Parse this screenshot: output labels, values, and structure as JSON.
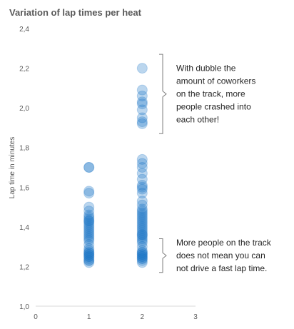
{
  "chart_data": {
    "type": "scatter",
    "title": "Variation of lap times per heat",
    "xlabel": "",
    "ylabel": "Lap time in minutes",
    "xlim": [
      0,
      3
    ],
    "ylim": [
      1.0,
      2.4
    ],
    "x_ticks": [
      0,
      1,
      2,
      3
    ],
    "x_tick_labels": [
      "0",
      "1",
      "2",
      "3"
    ],
    "y_ticks": [
      1.0,
      1.2,
      1.4,
      1.6,
      1.8,
      2.0,
      2.2,
      2.4
    ],
    "y_tick_labels": [
      "1,0",
      "1,2",
      "1,4",
      "1,6",
      "1,8",
      "2,0",
      "2,2",
      "2,4"
    ],
    "grid": false,
    "legend": "none",
    "marker_color": "#1f78c8",
    "marker_opacity": 0.3,
    "series": [
      {
        "x": 1,
        "values": [
          1.7,
          1.7,
          1.58,
          1.57,
          1.5,
          1.48,
          1.46,
          1.45,
          1.44,
          1.43,
          1.43,
          1.42,
          1.41,
          1.4,
          1.39,
          1.38,
          1.37,
          1.36,
          1.35,
          1.34,
          1.33,
          1.31,
          1.29,
          1.28,
          1.27,
          1.27,
          1.26,
          1.26,
          1.25,
          1.25,
          1.24,
          1.23,
          1.23,
          1.22
        ]
      },
      {
        "x": 2,
        "values": [
          2.2,
          2.09,
          2.06,
          2.03,
          2.02,
          1.99,
          1.95,
          1.93,
          1.92,
          1.74,
          1.72,
          1.7,
          1.67,
          1.64,
          1.61,
          1.6,
          1.59,
          1.57,
          1.53,
          1.51,
          1.49,
          1.48,
          1.47,
          1.46,
          1.45,
          1.44,
          1.43,
          1.42,
          1.41,
          1.4,
          1.39,
          1.38,
          1.37,
          1.36,
          1.36,
          1.35,
          1.34,
          1.33,
          1.32,
          1.3,
          1.28,
          1.27,
          1.27,
          1.26,
          1.26,
          1.25,
          1.25,
          1.24,
          1.24,
          1.23,
          1.22
        ]
      }
    ],
    "annotations": [
      {
        "lines": [
          "With dubble the",
          "amount of coworkers",
          "on the track, more",
          "people crashed into",
          "each other!"
        ],
        "range": [
          1.87,
          2.27
        ]
      },
      {
        "lines": [
          "More people on the track",
          "does not mean you can",
          "not drive a fast lap time."
        ],
        "range": [
          1.17,
          1.34
        ]
      }
    ]
  }
}
